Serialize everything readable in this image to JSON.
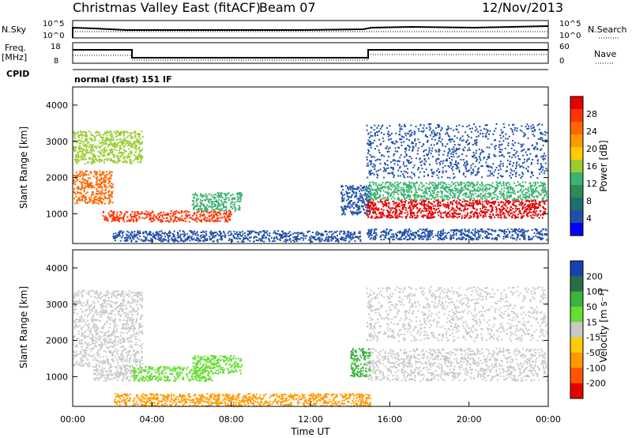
{
  "header": {
    "station": "Christmas Valley East (fitACF)",
    "beam": "Beam 07",
    "date": "12/Nov/2013"
  },
  "strips": {
    "nsky": {
      "label": "N.Sky",
      "ticks": [
        "10^5",
        "10^0"
      ],
      "right_label": "N.Search",
      "right_ticks": [
        "10^5",
        "10^0"
      ]
    },
    "freq": {
      "label_line1": "Freq.",
      "label_line2": "[MHz]",
      "ticks": [
        "18",
        "8"
      ],
      "right_label": "Nave",
      "right_ticks": [
        "60",
        "0"
      ]
    },
    "cpid": {
      "label": "CPID",
      "mode": "normal (fast) 151 IF"
    }
  },
  "axes": {
    "x_label": "Time UT",
    "x_ticks": [
      "00:00",
      "04:00",
      "08:00",
      "12:00",
      "16:00",
      "20:00",
      "00:00"
    ],
    "y_label": "Slant Range [km]",
    "y_ticks": [
      "1000",
      "2000",
      "3000",
      "4000"
    ]
  },
  "colorbars": {
    "power": {
      "title": "Power [dB]",
      "labels": [
        "28",
        "24",
        "20",
        "16",
        "12",
        "8",
        "4"
      ],
      "colors": [
        "#e60000",
        "#ff3300",
        "#ff6600",
        "#ff9900",
        "#ffcc00",
        "#9acd32",
        "#3cb371",
        "#2e8b57",
        "#1e7070",
        "#1f4fa8",
        "#0000ff"
      ]
    },
    "velocity": {
      "title": "Velocity [m s⁻¹]",
      "labels": [
        "200",
        "100",
        "50",
        "15",
        "-15",
        "-50",
        "-100",
        "-200"
      ],
      "colors": [
        "#1a3fb0",
        "#2a6e44",
        "#3cb33c",
        "#66dd33",
        "#c8c8c8",
        "#ffcc00",
        "#ff9900",
        "#ff5500",
        "#e60000"
      ]
    }
  },
  "chart_data": [
    {
      "type": "heatmap",
      "name": "power",
      "x_range_hours": [
        0,
        24
      ],
      "y_range_km": [
        180,
        4500
      ],
      "regions": [
        {
          "t": [
            0.0,
            2.0
          ],
          "r": [
            1300,
            2200
          ],
          "color": "#ff6600"
        },
        {
          "t": [
            0.0,
            3.5
          ],
          "r": [
            2400,
            3300
          ],
          "color": "#9acd32"
        },
        {
          "t": [
            1.5,
            8.0
          ],
          "r": [
            800,
            1100
          ],
          "color": "#ff3300"
        },
        {
          "t": [
            6.0,
            8.5
          ],
          "r": [
            1100,
            1600
          ],
          "color": "#3cb371"
        },
        {
          "t": [
            2.0,
            14.5
          ],
          "r": [
            250,
            550
          ],
          "color": "#1f4fa8"
        },
        {
          "t": [
            13.5,
            15.0
          ],
          "r": [
            1000,
            1800
          ],
          "color": "#1f4fa8"
        },
        {
          "t": [
            14.8,
            23.9
          ],
          "r": [
            900,
            1400
          ],
          "color": "#e60000"
        },
        {
          "t": [
            14.8,
            23.9
          ],
          "r": [
            1400,
            1900
          ],
          "color": "#3cb371"
        },
        {
          "t": [
            14.8,
            23.9
          ],
          "r": [
            2000,
            3500
          ],
          "color": "#1f4fa8"
        },
        {
          "t": [
            14.8,
            23.9
          ],
          "r": [
            300,
            600
          ],
          "color": "#1f4fa8"
        }
      ]
    },
    {
      "type": "heatmap",
      "name": "velocity",
      "x_range_hours": [
        0,
        24
      ],
      "y_range_km": [
        180,
        4500
      ],
      "regions": [
        {
          "t": [
            0.0,
            3.5
          ],
          "r": [
            1300,
            3400
          ],
          "color": "#c8c8c8"
        },
        {
          "t": [
            1.0,
            3.0
          ],
          "r": [
            900,
            1300
          ],
          "color": "#c8c8c8"
        },
        {
          "t": [
            3.0,
            7.0
          ],
          "r": [
            900,
            1300
          ],
          "color": "#66dd33"
        },
        {
          "t": [
            6.0,
            8.5
          ],
          "r": [
            1100,
            1600
          ],
          "color": "#66dd33"
        },
        {
          "t": [
            2.0,
            15.0
          ],
          "r": [
            200,
            550
          ],
          "color": "#ff9900"
        },
        {
          "t": [
            14.0,
            15.0
          ],
          "r": [
            1000,
            1800
          ],
          "color": "#3cb33c"
        },
        {
          "t": [
            14.8,
            23.9
          ],
          "r": [
            900,
            1800
          ],
          "color": "#c8c8c8"
        },
        {
          "t": [
            14.8,
            23.9
          ],
          "r": [
            2000,
            3500
          ],
          "color": "#c8c8c8"
        }
      ]
    }
  ]
}
